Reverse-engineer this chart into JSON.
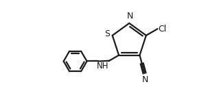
{
  "background_color": "#ffffff",
  "line_color": "#1a1a1a",
  "line_width": 1.6,
  "figsize": [
    3.19,
    1.49
  ],
  "dpi": 100,
  "xlim": [
    0.0,
    1.0
  ],
  "ylim": [
    0.0,
    1.0
  ]
}
